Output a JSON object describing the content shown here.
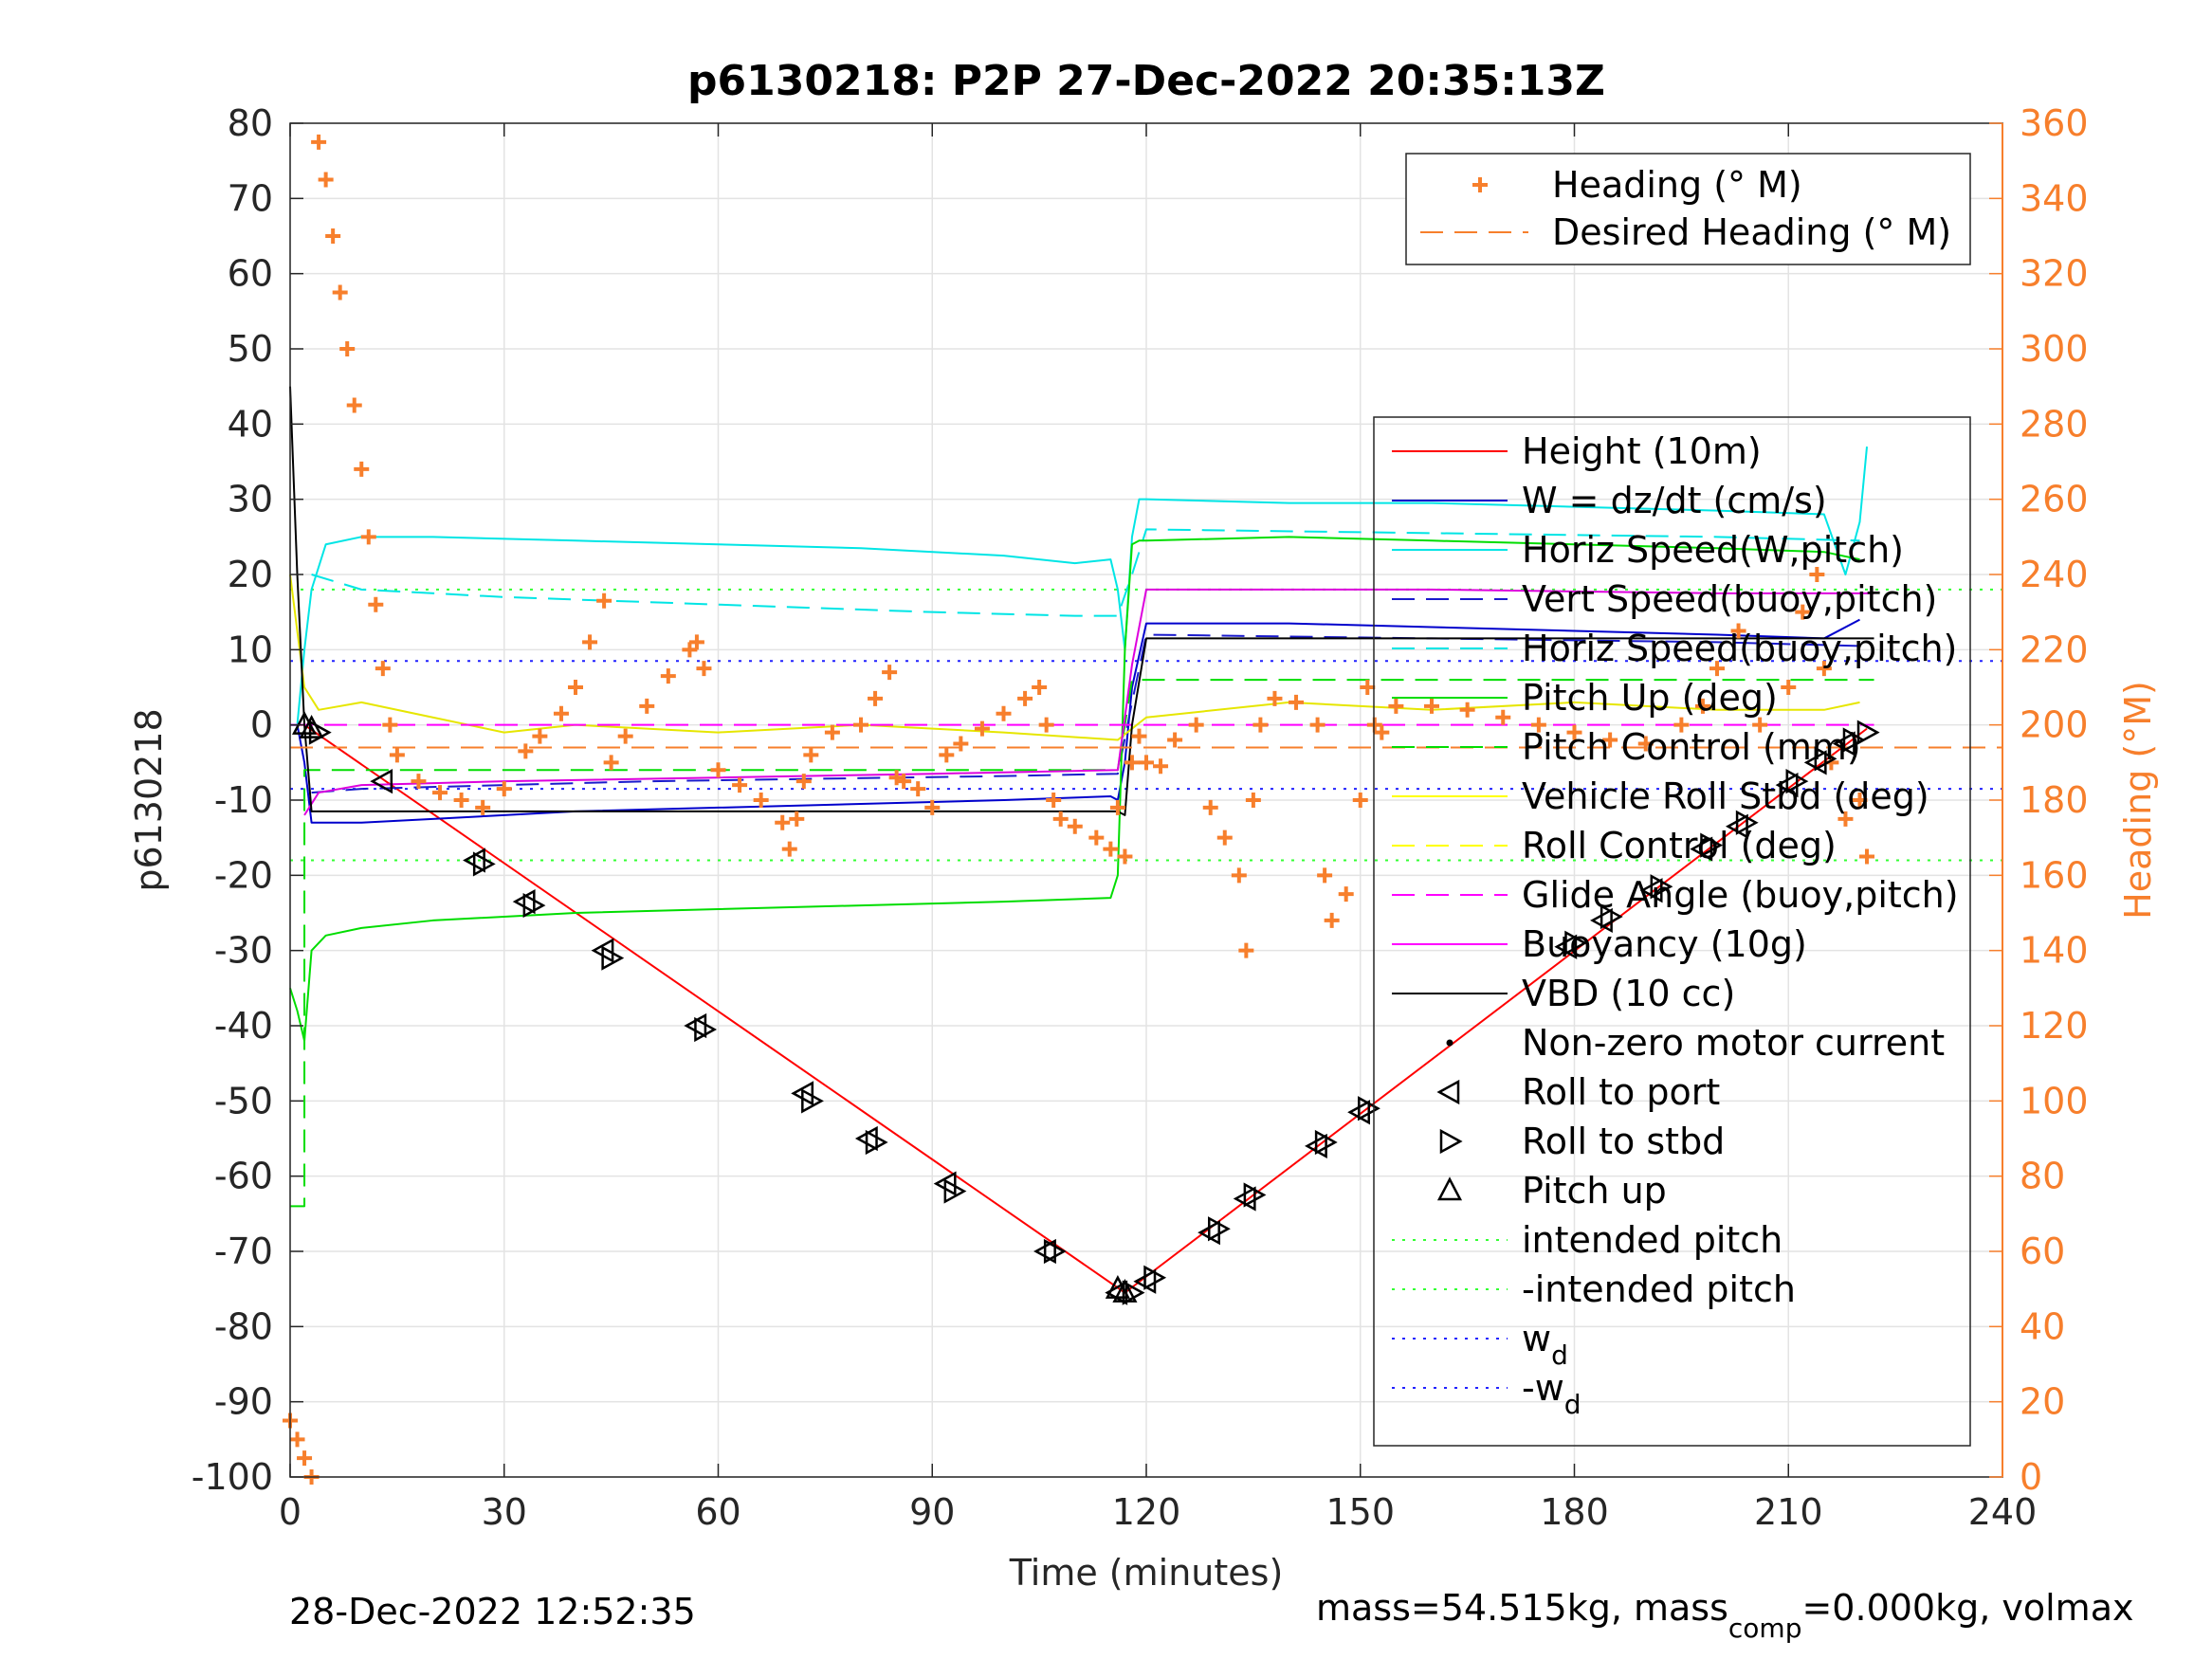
{
  "chart_data": {
    "type": "line",
    "title": "p6130218: P2P 27-Dec-2022 20:35:13Z",
    "xlabel": "Time (minutes)",
    "ylabel_left": "p6130218",
    "ylabel_right": "Heading (°M)",
    "xlim": [
      0,
      240
    ],
    "ylim_left": [
      -100,
      80
    ],
    "ylim_right": [
      0,
      360
    ],
    "x_ticks": [
      0,
      30,
      60,
      90,
      120,
      150,
      180,
      210,
      240
    ],
    "y_ticks_left": [
      -100,
      -90,
      -80,
      -70,
      -60,
      -50,
      -40,
      -30,
      -20,
      -10,
      0,
      10,
      20,
      30,
      40,
      50,
      60,
      70,
      80
    ],
    "y_ticks_right": [
      0,
      20,
      40,
      60,
      80,
      100,
      120,
      140,
      160,
      180,
      200,
      220,
      240,
      260,
      280,
      300,
      320,
      340,
      360
    ],
    "grid": true,
    "footer_left": "28-Dec-2022 12:52:35",
    "footer_right_parts": [
      "mass=54.515kg, mass",
      "comp",
      "=0.000kg, volmax"
    ],
    "colors": {
      "height": "#ff0000",
      "w": "#0000cc",
      "horiz_speed": "#00e5e5",
      "vert_speed": "#1a1acc",
      "pitch": "#00dd00",
      "roll": "#ffff00",
      "glide": "#ff00ff",
      "vbd": "#000000",
      "heading": "#f77f2c",
      "intended": "#33ff33",
      "wd": "#2222ff"
    },
    "legend_heading": {
      "placement": "top-right",
      "entries": [
        "Heading (° M)",
        "Desired Heading (° M)"
      ]
    },
    "legend_main": {
      "placement": "right",
      "entries": [
        {
          "label": "Height (10m)",
          "style": "line",
          "color": "#ff0000"
        },
        {
          "label": "W = dz/dt (cm/s)",
          "style": "line",
          "color": "#0000cc"
        },
        {
          "label": "Horiz Speed(W,pitch)",
          "style": "line",
          "color": "#00e5e5"
        },
        {
          "label": "Vert Speed(buoy,pitch)",
          "style": "dash",
          "color": "#1a1acc"
        },
        {
          "label": "Horiz Speed(buoy,pitch)",
          "style": "dash",
          "color": "#00e5e5"
        },
        {
          "label": "Pitch Up (deg)",
          "style": "line",
          "color": "#00dd00"
        },
        {
          "label": "Pitch Control (mm)",
          "style": "dash",
          "color": "#00dd00"
        },
        {
          "label": "Vehicle Roll Stbd (deg)",
          "style": "line",
          "color": "#ffff00"
        },
        {
          "label": "Roll Control (deg)",
          "style": "dash",
          "color": "#ffff00"
        },
        {
          "label": "Glide Angle (buoy,pitch)",
          "style": "dash",
          "color": "#ff00ff"
        },
        {
          "label": "Buoyancy (10g)",
          "style": "line",
          "color": "#ff00ff"
        },
        {
          "label": "VBD (10 cc)",
          "style": "line",
          "color": "#000000"
        },
        {
          "label": "Non-zero motor current",
          "style": "dot",
          "color": "#000000"
        },
        {
          "label": "Roll to port",
          "style": "tri-left",
          "color": "#000000"
        },
        {
          "label": "Roll to stbd",
          "style": "tri-right",
          "color": "#000000"
        },
        {
          "label": "Pitch up",
          "style": "tri-up",
          "color": "#000000"
        },
        {
          "label": "intended pitch",
          "style": "dotted",
          "color": "#33ff33"
        },
        {
          "label": "-intended pitch",
          "style": "dotted",
          "color": "#33ff33"
        },
        {
          "label": "w",
          "sub": "d",
          "style": "dotted",
          "color": "#2222ff"
        },
        {
          "label": "-w",
          "sub": "d",
          "style": "dotted",
          "color": "#2222ff"
        }
      ]
    },
    "series": [
      {
        "name": "Height (10m)",
        "x": [
          0,
          2,
          117,
          221
        ],
        "y": [
          0,
          0,
          -75.5,
          -0.5
        ]
      },
      {
        "name": "W = dz/dt (cm/s)",
        "x": [
          0,
          1,
          2,
          3,
          5,
          10,
          20,
          40,
          60,
          80,
          100,
          115,
          116,
          117,
          118,
          120,
          140,
          160,
          180,
          200,
          215,
          220
        ],
        "y": [
          0,
          0,
          -5,
          -13,
          -13,
          -13,
          -12.5,
          -11.5,
          -11,
          -10.5,
          -10,
          -9.5,
          -10,
          -5,
          5,
          13.5,
          13.5,
          13,
          12.5,
          12,
          11.5,
          14
        ]
      },
      {
        "name": "Horiz Speed(W,pitch)",
        "x": [
          0,
          1,
          2,
          3,
          5,
          10,
          20,
          40,
          60,
          80,
          100,
          110,
          115,
          116,
          117,
          118,
          119,
          120,
          140,
          160,
          180,
          200,
          215,
          218,
          220,
          221
        ],
        "y": [
          0,
          0,
          10,
          18,
          24,
          25,
          25,
          24.5,
          24,
          23.5,
          22.5,
          21.5,
          22,
          18,
          10,
          25,
          30,
          30,
          29.5,
          29.5,
          29,
          28.5,
          28,
          20,
          27,
          37
        ]
      },
      {
        "name": "Vert Speed(buoy,pitch)",
        "x": [
          3,
          10,
          50,
          100,
          116,
          118,
          120,
          160,
          200,
          220
        ],
        "y": [
          -9,
          -8.5,
          -7.5,
          -6.8,
          -6.5,
          3,
          12,
          11.5,
          11,
          10.5
        ]
      },
      {
        "name": "Horiz Speed(buoy,pitch)",
        "x": [
          3,
          10,
          30,
          60,
          90,
          110,
          116,
          118,
          120,
          160,
          200,
          220
        ],
        "y": [
          20,
          18,
          17,
          16,
          15,
          14.5,
          14.5,
          20,
          26,
          25.5,
          25,
          24.5
        ]
      },
      {
        "name": "Pitch Up (deg)",
        "x": [
          0,
          1,
          2,
          3,
          5,
          10,
          20,
          40,
          60,
          80,
          100,
          115,
          116,
          117,
          118,
          119,
          120,
          140,
          160,
          180,
          200,
          215,
          220
        ],
        "y": [
          -35,
          -38,
          -42,
          -30,
          -28,
          -27,
          -26,
          -25,
          -24.5,
          -24,
          -23.5,
          -23,
          -20,
          10,
          24,
          24.5,
          24.5,
          25,
          24.5,
          24,
          23.5,
          23,
          22
        ]
      },
      {
        "name": "Pitch Control (mm)",
        "x": [
          0,
          2,
          2,
          116,
          118,
          222
        ],
        "y": [
          -64,
          -64,
          -6,
          -6,
          6,
          6
        ]
      },
      {
        "name": "Vehicle Roll Stbd (deg)",
        "x": [
          0,
          2,
          4,
          10,
          20,
          30,
          40,
          60,
          80,
          100,
          116,
          120,
          140,
          160,
          180,
          200,
          215,
          220
        ],
        "y": [
          20,
          5,
          2,
          3,
          1,
          -1,
          0,
          -1,
          0,
          -1,
          -2,
          1,
          3,
          2,
          3,
          2,
          2,
          3
        ]
      },
      {
        "name": "Roll Control (deg)",
        "x": [
          0,
          240
        ],
        "y": [
          -3,
          -3
        ]
      },
      {
        "name": "Glide Angle (buoy,pitch)",
        "x": [
          0,
          116,
          118,
          222
        ],
        "y": [
          0,
          0,
          0,
          0
        ]
      },
      {
        "name": "Buoyancy (10g)",
        "x": [
          2,
          4,
          10,
          30,
          60,
          90,
          116,
          118,
          120,
          160,
          200,
          222
        ],
        "y": [
          -12,
          -9,
          -8,
          -7.5,
          -7,
          -6.5,
          -6,
          8,
          18,
          18,
          17.5,
          17.5
        ]
      },
      {
        "name": "VBD (10 cc)",
        "x": [
          0,
          1,
          2,
          3,
          116,
          117,
          118,
          120,
          222
        ],
        "y": [
          45,
          20,
          0,
          -11.5,
          -11.5,
          -12,
          0,
          11.5,
          11.5
        ]
      },
      {
        "name": "intended pitch",
        "x": [
          0,
          240
        ],
        "y": [
          18,
          18
        ]
      },
      {
        "name": "-intended pitch",
        "x": [
          0,
          240
        ],
        "y": [
          -18,
          -18
        ]
      },
      {
        "name": "w_d",
        "x": [
          0,
          240
        ],
        "y": [
          8.5,
          8.5
        ]
      },
      {
        "name": "-w_d",
        "x": [
          0,
          240
        ],
        "y": [
          -8.5,
          -8.5
        ]
      },
      {
        "name": "Heading (° M)",
        "axis": "right",
        "x": [
          0,
          1,
          2,
          3,
          4,
          5,
          6,
          7,
          8,
          9,
          10,
          11,
          12,
          13,
          14,
          15,
          18,
          21,
          24,
          27,
          30,
          33,
          35,
          38,
          40,
          42,
          44,
          45,
          47,
          50,
          53,
          56,
          57,
          58,
          60,
          63,
          66,
          69,
          70,
          71,
          72,
          73,
          76,
          80,
          82,
          84,
          85,
          86,
          88,
          90,
          92,
          94,
          97,
          100,
          103,
          105,
          106,
          107,
          108,
          110,
          113,
          115,
          116,
          117,
          118,
          119,
          120,
          122,
          124,
          127,
          129,
          131,
          133,
          134,
          135,
          136,
          138,
          141,
          144,
          145,
          146,
          148,
          150,
          151,
          152,
          153,
          155,
          160,
          165,
          170,
          175,
          180,
          185,
          190,
          195,
          198,
          200,
          203,
          206,
          210,
          212,
          214,
          215,
          216,
          218,
          220,
          221
        ],
        "y": [
          15,
          10,
          5,
          0,
          355,
          345,
          330,
          315,
          300,
          285,
          268,
          250,
          232,
          215,
          200,
          192,
          185,
          182,
          180,
          178,
          183,
          193,
          197,
          203,
          210,
          222,
          233,
          190,
          197,
          205,
          213,
          220,
          222,
          215,
          188,
          184,
          180,
          174,
          167,
          175,
          185,
          192,
          198,
          200,
          207,
          214,
          186,
          185,
          183,
          178,
          192,
          195,
          199,
          203,
          207,
          210,
          200,
          180,
          175,
          173,
          170,
          167,
          178,
          165,
          190,
          197,
          190,
          189,
          196,
          200,
          178,
          170,
          160,
          140,
          180,
          200,
          207,
          206,
          200,
          160,
          148,
          155,
          180,
          210,
          200,
          198,
          205,
          205,
          204,
          202,
          200,
          198,
          196,
          195,
          200,
          205,
          215,
          225,
          200,
          210,
          230,
          240,
          215,
          190,
          175,
          180,
          165
        ]
      },
      {
        "name": "Desired Heading (° M)",
        "axis": "right",
        "x": [
          0,
          240
        ],
        "y": [
          194,
          194
        ]
      }
    ],
    "markers": {
      "roll_to_port": {
        "x": [
          13,
          26,
          33,
          44,
          57,
          72,
          81,
          92,
          106,
          116,
          120,
          129,
          134,
          144,
          150,
          179,
          184,
          191,
          198,
          203,
          210,
          214,
          218
        ],
        "y": [
          -7.5,
          -18,
          -23.5,
          -30,
          -40,
          -49,
          -55,
          -61,
          -70,
          -75.5,
          -74,
          -67.5,
          -63,
          -56,
          -51.5,
          -29.5,
          -26,
          -22,
          -16.5,
          -13.5,
          -8,
          -5,
          -2.5
        ]
      },
      "roll_to_stbd": {
        "x": [
          4,
          27,
          34,
          45,
          58,
          73,
          82,
          93,
          107,
          118,
          121,
          130,
          135,
          145,
          151,
          180,
          185,
          192,
          199,
          204,
          211,
          215,
          219,
          221
        ],
        "y": [
          -1,
          -18.5,
          -24,
          -31,
          -40.5,
          -50,
          -55.5,
          -62,
          -70,
          -75.5,
          -73.5,
          -67,
          -62.5,
          -55.5,
          -51,
          -29,
          -25.5,
          -21.5,
          -16,
          -13,
          -7.5,
          -4.5,
          -2,
          -1
        ]
      },
      "pitch_up": {
        "x": [
          2,
          3,
          116,
          117
        ],
        "y": [
          0,
          -0.5,
          -75,
          -75.5
        ]
      }
    }
  }
}
